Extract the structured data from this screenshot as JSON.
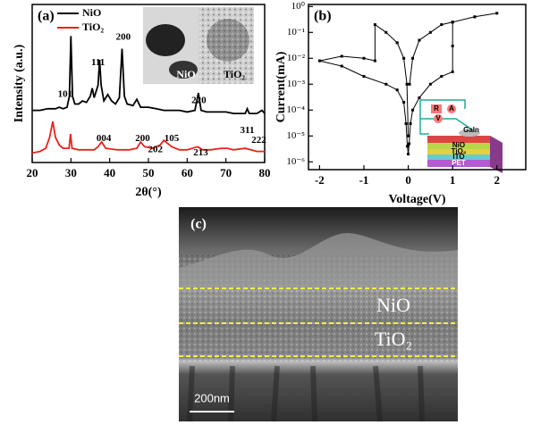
{
  "chart_data": [
    {
      "type": "line",
      "label": "(a)",
      "xlabel": "2θ(°)",
      "ylabel": "Intensity (a.u.)",
      "xlim": [
        20,
        80
      ],
      "xticks": [
        20,
        30,
        40,
        50,
        60,
        70,
        80
      ],
      "ylim": [
        0,
        100
      ],
      "legend": "upper left",
      "series": [
        {
          "name": "NiO",
          "color": "#000000",
          "x": [
            20,
            22,
            24,
            26,
            27,
            28,
            29,
            29.6,
            30,
            30.4,
            31,
            32,
            33,
            34,
            35,
            35.5,
            36,
            37,
            37.4,
            37.8,
            38.5,
            39.5,
            40.5,
            41.5,
            42.5,
            43.2,
            43.8,
            44.5,
            46,
            47,
            48,
            50,
            52,
            54,
            56,
            58,
            60,
            62,
            62.9,
            63.6,
            65,
            67,
            70,
            72,
            75,
            75.5,
            76,
            78,
            79.3,
            80
          ],
          "values": [
            33,
            33,
            34,
            34,
            35,
            34,
            35,
            42,
            80,
            42,
            37,
            37,
            39,
            38,
            42,
            47,
            41,
            49,
            65,
            49,
            39,
            43,
            39,
            37,
            41,
            72,
            42,
            37,
            36,
            40,
            35,
            35,
            34,
            33,
            33,
            33,
            32,
            33,
            44,
            33,
            32,
            32,
            32,
            31,
            31,
            34,
            31,
            31,
            33,
            31
          ]
        },
        {
          "name": "TiO₂",
          "color": "#e8231c",
          "x": [
            20,
            22,
            23.5,
            24.5,
            25.3,
            26,
            27,
            28,
            29.5,
            29.9,
            30.3,
            32,
            34,
            36,
            37,
            37.9,
            39,
            42,
            45,
            47,
            48,
            49,
            51,
            53,
            54,
            55,
            56,
            58,
            60,
            62.7,
            64,
            66,
            68.8,
            70.3,
            72,
            75,
            78,
            80
          ],
          "values": [
            6,
            7,
            9,
            16,
            26,
            16,
            11,
            9,
            9,
            18,
            9,
            8,
            8,
            8,
            10,
            13,
            9,
            8,
            8,
            9,
            13,
            10,
            9,
            11,
            14,
            12,
            10,
            8,
            8,
            10,
            8,
            8,
            9,
            9,
            8,
            9,
            7,
            7
          ]
        }
      ],
      "annotations": [
        {
          "text": "101",
          "x": 28.5,
          "y": 43
        },
        {
          "text": "111",
          "x": 37,
          "y": 63
        },
        {
          "text": "200",
          "x": 43.5,
          "y": 79
        },
        {
          "text": "004",
          "x": 38.5,
          "y": 15
        },
        {
          "text": "200",
          "x": 48.5,
          "y": 15
        },
        {
          "text": "202",
          "x": 51.8,
          "y": 8
        },
        {
          "text": "105",
          "x": 56,
          "y": 15
        },
        {
          "text": "213",
          "x": 63.5,
          "y": 6
        },
        {
          "text": "220",
          "x": 63,
          "y": 39
        },
        {
          "text": "311",
          "x": 75.5,
          "y": 20
        },
        {
          "text": "222",
          "x": 78.5,
          "y": 14
        }
      ],
      "inset_labels": [
        "NiO",
        "TiO₂"
      ]
    },
    {
      "type": "line",
      "label": "(b)",
      "xlabel": "Voltage(V)",
      "ylabel": "Current(mA)",
      "log_y": true,
      "xlim": [
        -2.25,
        2.65
      ],
      "xticks": [
        -2,
        -1,
        0,
        1,
        2
      ],
      "ylim": [
        5e-07,
        1.2
      ],
      "yticks": [
        {
          "value": 1e-06,
          "label": "10⁻⁶"
        },
        {
          "value": 1e-05,
          "label": "10⁻⁵"
        },
        {
          "value": 0.0001,
          "label": "10⁻⁴"
        },
        {
          "value": 0.001,
          "label": "10⁻³"
        },
        {
          "value": 0.01,
          "label": "10⁻²"
        },
        {
          "value": 0.1,
          "label": "10⁻¹"
        },
        {
          "value": 1,
          "label": "10⁰"
        }
      ],
      "series": [
        {
          "color": "#000000",
          "x": [
            0.03,
            0.1,
            0.25,
            0.5,
            0.75,
            1,
            1.5,
            2,
            1.5,
            1,
            1,
            1,
            0.75,
            0.5,
            0.25,
            0.1,
            0.05,
            0.02,
            0,
            -0.02,
            -0.05,
            -0.1,
            -0.25,
            -0.5,
            -1,
            -1.5,
            -2,
            -1.5,
            -1,
            -0.75,
            -0.75,
            -0.5,
            -0.25,
            -0.1,
            -0.03,
            0
          ],
          "values": [
            0.001,
            0.01,
            0.05,
            0.1,
            0.2,
            0.25,
            0.4,
            0.55,
            0.4,
            0.25,
            0.03,
            0.003,
            0.002,
            0.001,
            0.0003,
            0.0001,
            3e-05,
            5e-06,
            2e-06,
            4e-06,
            3e-05,
            0.0002,
            0.0006,
            0.001,
            0.002,
            0.005,
            0.008,
            0.012,
            0.01,
            0.008,
            0.2,
            0.1,
            0.04,
            0.01,
            0.001,
            1e-05
          ]
        }
      ],
      "inset_labels": [
        "R",
        "A",
        "V",
        "GaIn",
        "NiO",
        "TiO₂",
        "ITO",
        "PET"
      ]
    }
  ],
  "image_panel": {
    "label": "(c)",
    "layers": [
      "NiO",
      "TiO₂"
    ],
    "scale_bar": "200nm"
  }
}
